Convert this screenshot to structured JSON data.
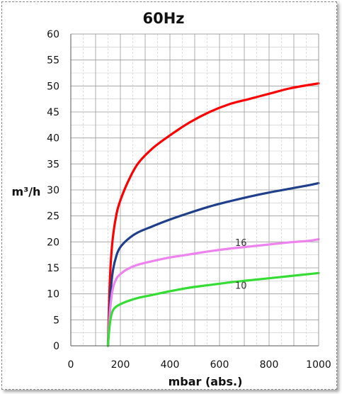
{
  "chart_data": {
    "type": "line",
    "title": "60Hz",
    "xlabel": "mbar (abs.)",
    "ylabel": "m³/h",
    "xlim": [
      0,
      1000
    ],
    "ylim": [
      0,
      60
    ],
    "xticks": [
      "0",
      "200",
      "400",
      "600",
      "800",
      "1000"
    ],
    "yticks": [
      "0",
      "5",
      "10",
      "15",
      "20",
      "25",
      "30",
      "35",
      "40",
      "45",
      "50",
      "55",
      "60"
    ],
    "grid": true,
    "series": [
      {
        "color": "#ff0000",
        "x": [
          150,
          152,
          155,
          160,
          170,
          185,
          200,
          230,
          270,
          330,
          400,
          480,
          560,
          640,
          720,
          800,
          880,
          960,
          1000
        ],
        "y": [
          0,
          4,
          9,
          15,
          21,
          25.5,
          28,
          31.5,
          35,
          38,
          40.5,
          43,
          45,
          46.5,
          47.5,
          48.5,
          49.5,
          50.2,
          50.5
        ]
      },
      {
        "color": "#1f3f8c",
        "x": [
          150,
          152,
          155,
          160,
          170,
          185,
          200,
          230,
          270,
          330,
          400,
          480,
          560,
          640,
          720,
          800,
          880,
          960,
          1000
        ],
        "y": [
          0,
          2,
          5.5,
          10,
          14.5,
          17.5,
          19,
          20.5,
          21.8,
          23,
          24.3,
          25.6,
          26.8,
          27.8,
          28.7,
          29.5,
          30.2,
          30.9,
          31.3
        ]
      },
      {
        "color": "#ee82ee",
        "annotation": "16",
        "annotation_at": [
          710,
          19.2
        ],
        "x": [
          150,
          153,
          157,
          163,
          172,
          185,
          200,
          230,
          270,
          330,
          400,
          480,
          560,
          640,
          720,
          800,
          880,
          960,
          1000
        ],
        "y": [
          0,
          3,
          6,
          9,
          11.5,
          13,
          13.8,
          14.8,
          15.6,
          16.3,
          17,
          17.6,
          18.2,
          18.7,
          19.1,
          19.5,
          19.9,
          20.2,
          20.5
        ]
      },
      {
        "color": "#33dd33",
        "annotation": "10",
        "annotation_at": [
          710,
          11
        ],
        "x": [
          150,
          153,
          157,
          163,
          172,
          185,
          200,
          230,
          270,
          330,
          400,
          480,
          560,
          640,
          720,
          800,
          880,
          960,
          1000
        ],
        "y": [
          0,
          2,
          4,
          5.8,
          7,
          7.6,
          8,
          8.6,
          9.2,
          9.8,
          10.5,
          11.2,
          11.7,
          12.2,
          12.6,
          13,
          13.4,
          13.8,
          14
        ]
      }
    ]
  }
}
